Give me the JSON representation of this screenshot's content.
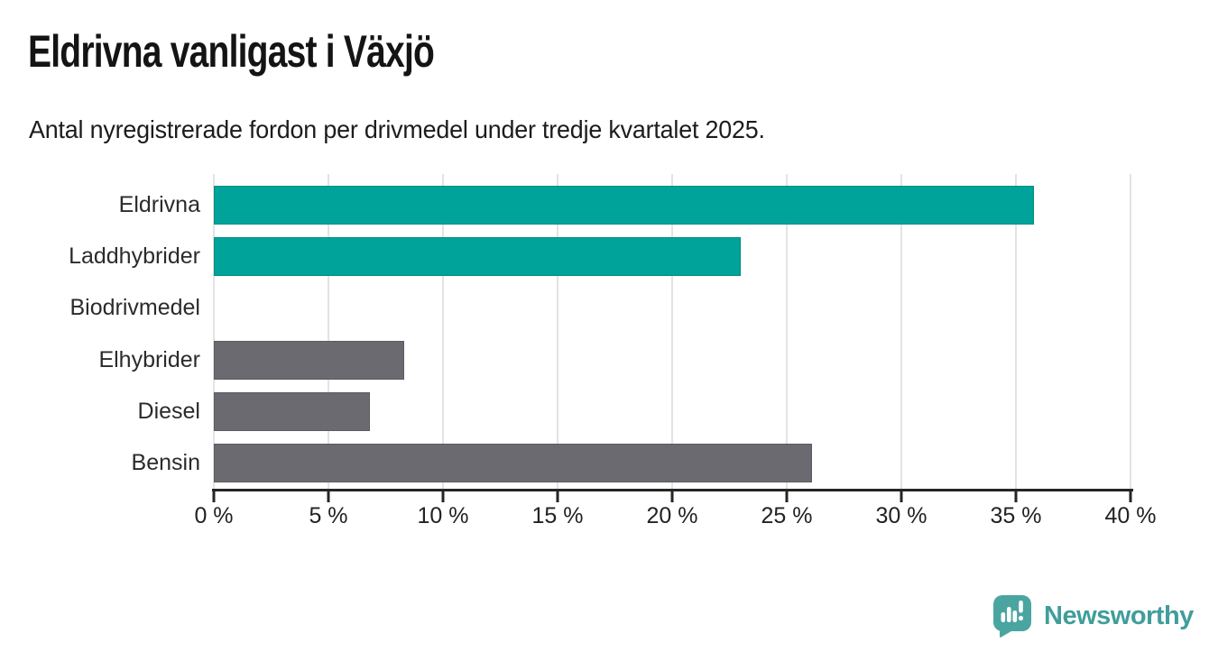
{
  "header": {
    "title": "Eldrivna vanligast i Växjö",
    "subtitle": "Antal nyregistrerade fordon per drivmedel under tredje kvartalet 2025."
  },
  "chart_data": {
    "type": "bar",
    "orientation": "horizontal",
    "title": "Eldrivna vanligast i Växjö",
    "subtitle": "Antal nyregistrerade fordon per drivmedel under tredje kvartalet 2025.",
    "categories": [
      "Eldrivna",
      "Laddhybrider",
      "Biodrivmedel",
      "Elhybrider",
      "Diesel",
      "Bensin"
    ],
    "values": [
      35.8,
      23.0,
      0,
      8.3,
      6.8,
      26.1
    ],
    "unit": "%",
    "xlim": [
      0,
      40
    ],
    "x_ticks": [
      0,
      5,
      10,
      15,
      20,
      25,
      30,
      35,
      40
    ],
    "x_tick_labels": [
      "0 %",
      "5 %",
      "10 %",
      "15 %",
      "20 %",
      "25 %",
      "30 %",
      "35 %",
      "40 %"
    ],
    "bar_colors": [
      "#00a399",
      "#00a399",
      "#6b6a71",
      "#6b6a71",
      "#6b6a71",
      "#6b6a71"
    ],
    "highlight_color": "#00a399",
    "default_color": "#6b6a71",
    "grid": true,
    "gridline_color": "#e3e3e3",
    "axis_color": "#252525",
    "legend": "none"
  },
  "footer": {
    "brand": "Newsworthy",
    "brand_color": "#3f9e9a",
    "logo_icon_color": "#4aa5a1",
    "logo_icon": "newsworthy-pin-barchart-icon"
  }
}
